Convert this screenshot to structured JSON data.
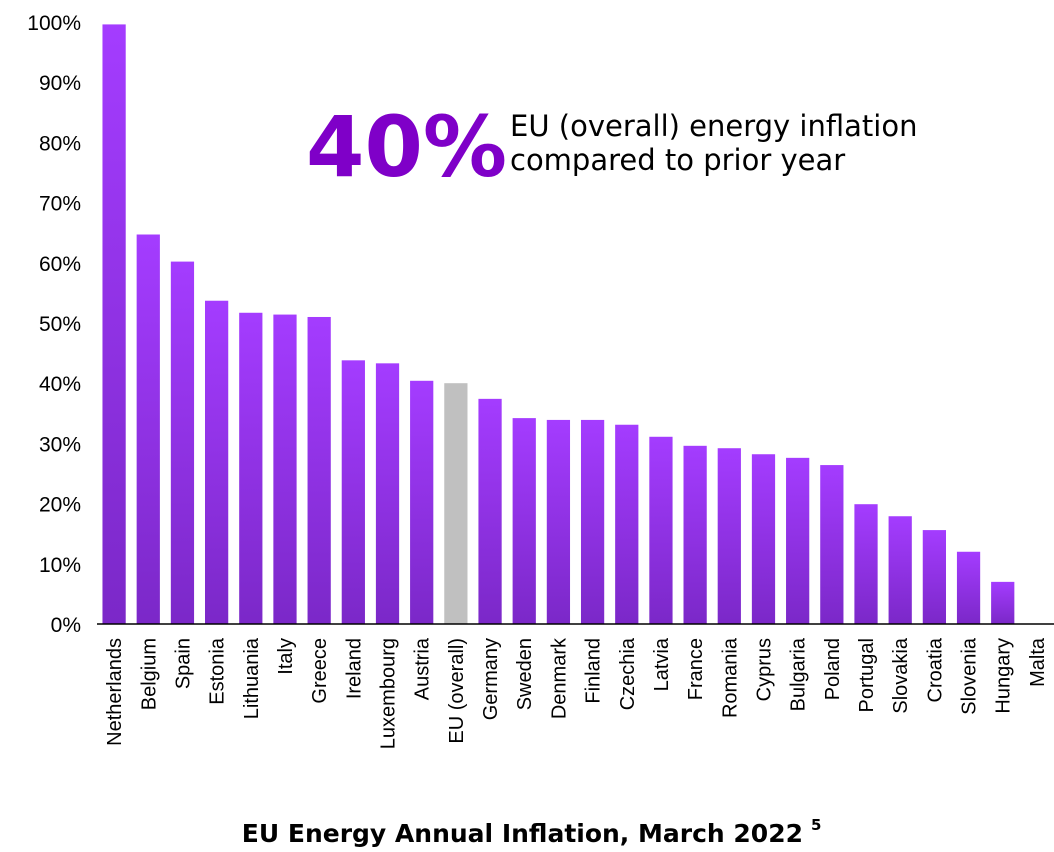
{
  "chart_data": {
    "type": "bar",
    "title": "EU Energy Annual Inflation, March 2022",
    "title_footnote": "5",
    "xlabel": "",
    "ylabel": "",
    "ylim": [
      0,
      100
    ],
    "y_ticks": [
      "0%",
      "10%",
      "20%",
      "30%",
      "40%",
      "50%",
      "60%",
      "70%",
      "80%",
      "90%",
      "100%"
    ],
    "categories": [
      "Netherlands",
      "Belgium",
      "Spain",
      "Estonia",
      "Lithuania",
      "Italy",
      "Greece",
      "Ireland",
      "Luxembourg",
      "Austria",
      "EU (overall)",
      "Germany",
      "Sweden",
      "Denmark",
      "Finland",
      "Czechia",
      "Latvia",
      "France",
      "Romania",
      "Cyprus",
      "Bulgaria",
      "Poland",
      "Portugal",
      "Slovakia",
      "Croatia",
      "Slovenia",
      "Hungary",
      "Malta"
    ],
    "values": [
      99.6,
      64.7,
      60.2,
      53.7,
      51.7,
      51.4,
      51.0,
      43.8,
      43.3,
      40.4,
      40.0,
      37.4,
      34.2,
      33.9,
      33.9,
      33.1,
      31.1,
      29.6,
      29.2,
      28.2,
      27.6,
      26.4,
      19.9,
      17.9,
      15.6,
      12.0,
      7.0,
      0
    ],
    "highlight_category": "EU (overall)",
    "grid": false,
    "legend": "none",
    "colors": {
      "bar_top": "#a43cff",
      "bar_bottom": "#7b28c8",
      "highlight": "#c0c0c0",
      "callout": "#7f00c8",
      "axis": "#000000"
    },
    "annotation": {
      "value": "40%",
      "line1": "EU (overall) energy inflation",
      "line2": "compared to prior year"
    }
  }
}
